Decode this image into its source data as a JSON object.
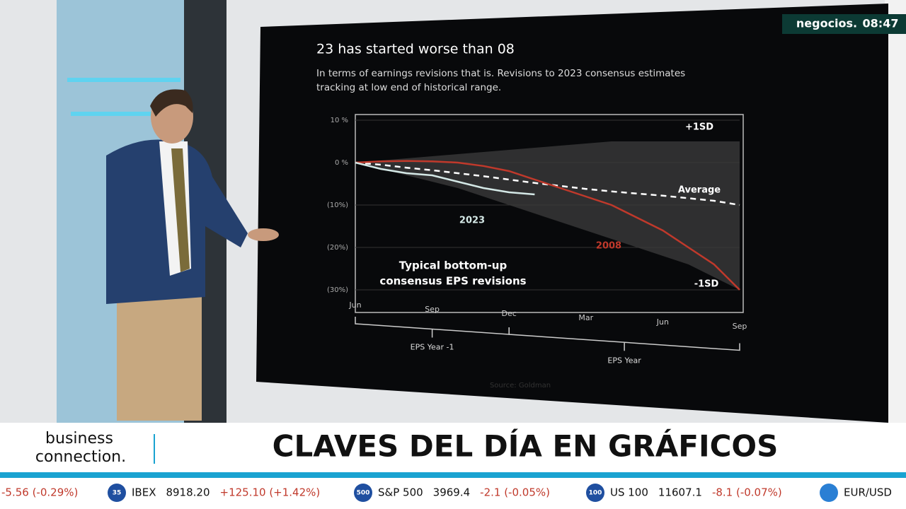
{
  "channel": {
    "brand": "negocios.",
    "time": "08:47"
  },
  "chart_data": {
    "type": "line",
    "title": "23 has started worse than 08",
    "subtitle": [
      "In terms of earnings revisions that is. Revisions to 2023 consensus estimates",
      "tracking at low end of historical range."
    ],
    "annotation": [
      "Typical bottom-up",
      "consensus EPS revisions"
    ],
    "brackets": [
      "EPS Year -1",
      "EPS Year"
    ],
    "source": "Source: Goldman",
    "categories": [
      "Jun",
      null,
      null,
      "Sep",
      null,
      null,
      "Dec",
      null,
      null,
      "Mar",
      null,
      null,
      "Jun",
      null,
      null,
      "Sep"
    ],
    "ylim": [
      -30,
      10
    ],
    "yticks": [
      {
        "value": 10,
        "label": "10 %"
      },
      {
        "value": 0,
        "label": "0 %"
      },
      {
        "value": -10,
        "label": "(10%)"
      },
      {
        "value": -20,
        "label": "(20%)"
      },
      {
        "value": -30,
        "label": "(30%)"
      }
    ],
    "band": [
      {
        "name": "+1SD",
        "color": "#3a3a3a",
        "values": [
          0,
          0.5,
          1,
          1.5,
          2,
          2.5,
          3,
          3.5,
          4,
          4.5,
          5,
          5,
          5,
          5,
          5,
          5
        ]
      },
      {
        "name": "-1SD",
        "color": "#3a3a3a",
        "values": [
          0,
          -1.5,
          -3,
          -4.5,
          -6,
          -8,
          -10,
          -12,
          -14,
          -16,
          -18,
          -20,
          -22,
          -24,
          -27,
          -30
        ]
      }
    ],
    "series": [
      {
        "name": "Average",
        "color": "#ffffff",
        "dashed": true,
        "values": [
          0,
          -0.5,
          -1.2,
          -1.8,
          -2.5,
          -3.2,
          -4,
          -4.8,
          -5.5,
          -6.2,
          -6.8,
          -7.3,
          -7.8,
          -8.4,
          -9,
          -10
        ]
      },
      {
        "name": "2008",
        "color": "#c0392b",
        "dashed": false,
        "values": [
          0,
          0.3,
          0.4,
          0.3,
          0,
          -0.8,
          -2,
          -4,
          -6,
          -8,
          -10,
          -13,
          -16,
          -20,
          -24,
          -30
        ]
      },
      {
        "name": "2023",
        "color": "#d4e8e6",
        "dashed": false,
        "values": [
          0,
          -1.5,
          -2.5,
          -3,
          -4.5,
          -6,
          -7,
          -7.5,
          null,
          null,
          null,
          null,
          null,
          null,
          null,
          null
        ]
      }
    ]
  },
  "lower_third": {
    "show": [
      "business",
      "connection."
    ],
    "headline": "CLAVES DEL DÍA EN GRÁFICOS"
  },
  "ticker": [
    {
      "change": "-5.56 (-0.29%)"
    },
    {
      "badge": "35",
      "name": "IBEX",
      "price": "8918.20",
      "change": "+125.10 (+1.42%)"
    },
    {
      "badge": "500",
      "name": "S&P 500",
      "price": "3969.4",
      "change": "-2.1 (-0.05%)"
    },
    {
      "badge": "100",
      "name": "US 100",
      "price": "11607.1",
      "change": "-8.1 (-0.07%)"
    },
    {
      "name": "EUR/USD"
    }
  ]
}
